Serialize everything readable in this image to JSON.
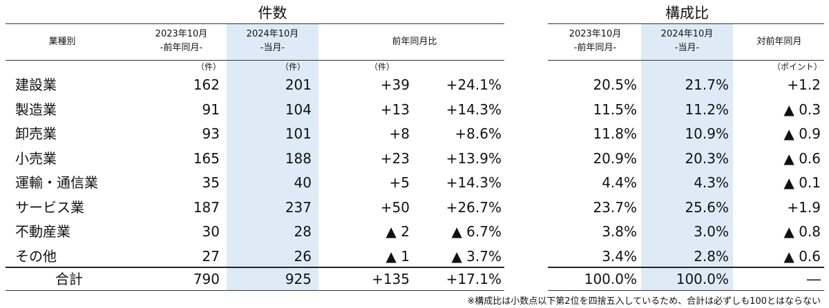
{
  "sections": {
    "count_title": "件数",
    "ratio_title": "構成比"
  },
  "headers": {
    "category": "業種別",
    "prev_period_line1": "2023年10月",
    "prev_period_line2": "-前年同月-",
    "curr_period_line1": "2024年10月",
    "curr_period_line2": "-当月-",
    "yoy": "前年同月比",
    "ratio_prev_line1": "2023年10月",
    "ratio_prev_line2": "-前年同月-",
    "ratio_curr_line1": "2024年10月",
    "ratio_curr_line2": "-当月-",
    "ratio_diff": "対前年同月"
  },
  "units": {
    "prev": "（件）",
    "curr": "（件）",
    "diff": "（件）",
    "points": "（ポイント）"
  },
  "rows": [
    {
      "category": "建設業",
      "prev": "162",
      "curr": "201",
      "diff": "+39",
      "pct": "+24.1%",
      "ratio_prev": "20.5%",
      "ratio_curr": "21.7%",
      "ratio_diff": "+1.2"
    },
    {
      "category": "製造業",
      "prev": "91",
      "curr": "104",
      "diff": "+13",
      "pct": "+14.3%",
      "ratio_prev": "11.5%",
      "ratio_curr": "11.2%",
      "ratio_diff": "▲ 0.3"
    },
    {
      "category": "卸売業",
      "prev": "93",
      "curr": "101",
      "diff": "+8",
      "pct": "+8.6%",
      "ratio_prev": "11.8%",
      "ratio_curr": "10.9%",
      "ratio_diff": "▲ 0.9"
    },
    {
      "category": "小売業",
      "prev": "165",
      "curr": "188",
      "diff": "+23",
      "pct": "+13.9%",
      "ratio_prev": "20.9%",
      "ratio_curr": "20.3%",
      "ratio_diff": "▲ 0.6"
    },
    {
      "category": "運輸・通信業",
      "prev": "35",
      "curr": "40",
      "diff": "+5",
      "pct": "+14.3%",
      "ratio_prev": "4.4%",
      "ratio_curr": "4.3%",
      "ratio_diff": "▲ 0.1"
    },
    {
      "category": "サービス業",
      "prev": "187",
      "curr": "237",
      "diff": "+50",
      "pct": "+26.7%",
      "ratio_prev": "23.7%",
      "ratio_curr": "25.6%",
      "ratio_diff": "+1.9"
    },
    {
      "category": "不動産業",
      "prev": "30",
      "curr": "28",
      "diff": "▲ 2",
      "pct": "▲ 6.7%",
      "ratio_prev": "3.8%",
      "ratio_curr": "3.0%",
      "ratio_diff": "▲ 0.8"
    },
    {
      "category": "その他",
      "prev": "27",
      "curr": "26",
      "diff": "▲ 1",
      "pct": "▲ 3.7%",
      "ratio_prev": "3.4%",
      "ratio_curr": "2.8%",
      "ratio_diff": "▲ 0.6"
    }
  ],
  "total": {
    "category": "合計",
    "prev": "790",
    "curr": "925",
    "diff": "+135",
    "pct": "+17.1%",
    "ratio_prev": "100.0%",
    "ratio_curr": "100.0%",
    "ratio_diff": "―"
  },
  "note": "※構成比は小数点以下第2位を四捨五入しているため、合計は必ずしも100とはならない"
}
